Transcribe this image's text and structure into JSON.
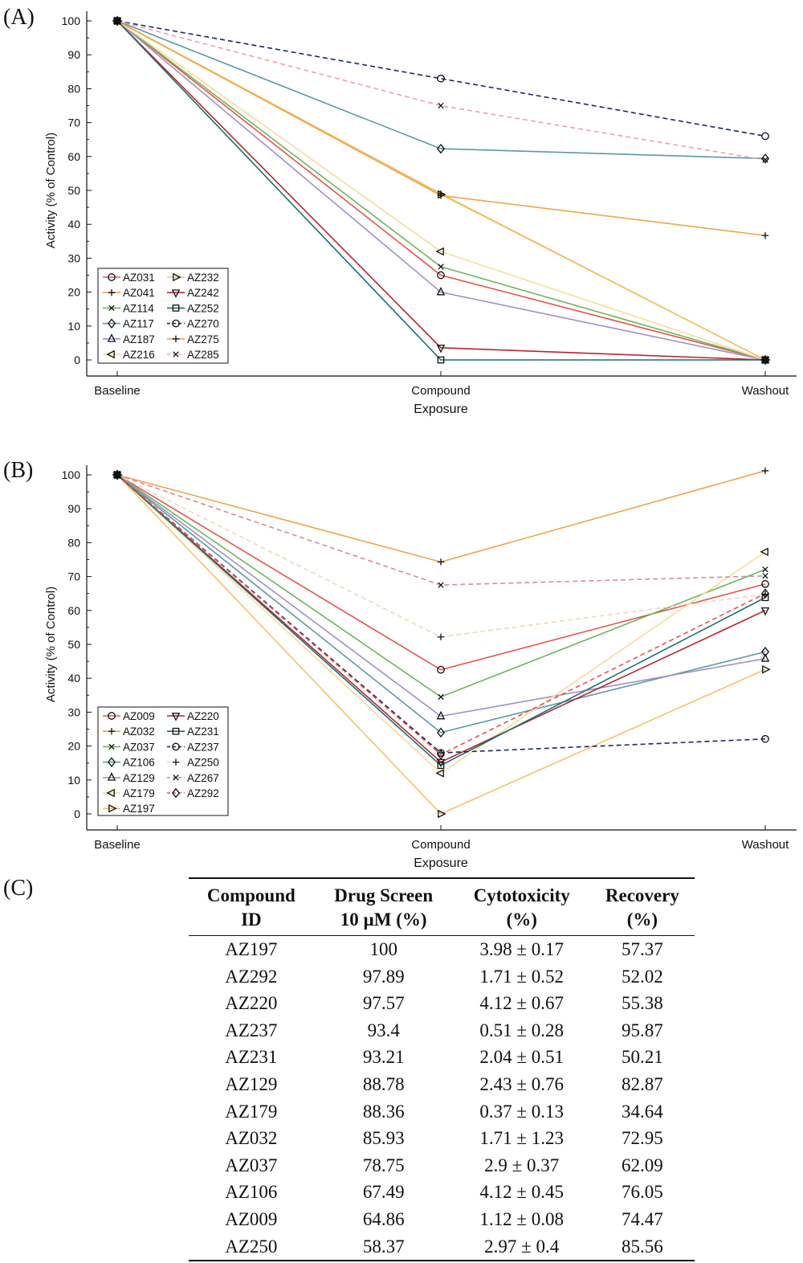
{
  "colors": {
    "AZ031": "#e8534d",
    "AZ041": "#f0a54a",
    "AZ114": "#6fb55c",
    "AZ117": "#5a9aa6",
    "AZ187": "#a190c7",
    "AZ216": "#f5dc98",
    "AZ232": "#f5c36a",
    "AZ242": "#b8262e",
    "AZ252": "#1d6f73",
    "AZ270": "#1a2a5c",
    "AZ275": "#f0a54a",
    "AZ285": "#e8a3b0",
    "AZ009": "#e8534d",
    "AZ032": "#f0a54a",
    "AZ037": "#6fb55c",
    "AZ106": "#5a9aa6",
    "AZ129": "#a190c7",
    "AZ179": "#f5dc98",
    "AZ197": "#f5c36a",
    "AZ220": "#b8262e",
    "AZ231": "#1d6f73",
    "AZ237": "#1a2a5c",
    "AZ250": "#f0d8c0",
    "AZ267": "#d98aa0",
    "AZ292": "#e8534d"
  },
  "chart_data": [
    {
      "panel_label": "(A)",
      "type": "line",
      "x": [
        "Baseline",
        "Compound",
        "Washout"
      ],
      "xlabel": "Exposure",
      "ylabel": "Activity (% of Control)",
      "ylim": [
        0,
        100
      ],
      "yticks": [
        "0",
        "10",
        "20",
        "30",
        "40",
        "50",
        "60",
        "70",
        "80",
        "90",
        "100"
      ],
      "legend_position": "lower-left",
      "series": [
        {
          "name": "AZ031",
          "values": [
            100,
            25,
            0
          ],
          "marker": "circle",
          "dash": false
        },
        {
          "name": "AZ041",
          "values": [
            100,
            49,
            0
          ],
          "marker": "plus",
          "dash": false
        },
        {
          "name": "AZ114",
          "values": [
            100,
            27.5,
            0
          ],
          "marker": "x",
          "dash": false
        },
        {
          "name": "AZ117",
          "values": [
            100,
            62.3,
            59.4
          ],
          "marker": "diamond",
          "dash": false
        },
        {
          "name": "AZ187",
          "values": [
            100,
            20,
            0
          ],
          "marker": "triangle-up",
          "dash": false
        },
        {
          "name": "AZ216",
          "values": [
            100,
            32,
            0
          ],
          "marker": "triangle-left",
          "dash": false
        },
        {
          "name": "AZ232",
          "values": [
            100,
            48.8,
            0
          ],
          "marker": "triangle-right",
          "dash": false
        },
        {
          "name": "AZ242",
          "values": [
            100,
            3.6,
            0
          ],
          "marker": "triangle-down",
          "dash": false
        },
        {
          "name": "AZ252",
          "values": [
            100,
            0,
            0
          ],
          "marker": "square",
          "dash": false
        },
        {
          "name": "AZ270",
          "values": [
            100,
            83,
            66
          ],
          "marker": "circle",
          "dash": true
        },
        {
          "name": "AZ275",
          "values": [
            100,
            48.5,
            36.7
          ],
          "marker": "plus",
          "dash": false
        },
        {
          "name": "AZ285",
          "values": [
            100,
            75,
            59
          ],
          "marker": "x",
          "dash": true
        }
      ]
    },
    {
      "panel_label": "(B)",
      "type": "line",
      "x": [
        "Baseline",
        "Compound",
        "Washout"
      ],
      "xlabel": "Exposure",
      "ylabel": "Activity (% of Control)",
      "ylim": [
        0,
        100
      ],
      "yticks": [
        "0",
        "10",
        "20",
        "30",
        "40",
        "50",
        "60",
        "70",
        "80",
        "90",
        "100"
      ],
      "legend_position": "lower-left",
      "series": [
        {
          "name": "AZ009",
          "values": [
            100,
            42.5,
            67.8
          ],
          "marker": "circle",
          "dash": false
        },
        {
          "name": "AZ032",
          "values": [
            100,
            74.3,
            101.2
          ],
          "marker": "plus",
          "dash": false
        },
        {
          "name": "AZ037",
          "values": [
            100,
            34.5,
            72.1
          ],
          "marker": "x",
          "dash": false
        },
        {
          "name": "AZ106",
          "values": [
            100,
            24,
            47.8
          ],
          "marker": "diamond",
          "dash": false
        },
        {
          "name": "AZ129",
          "values": [
            100,
            28.8,
            45.8
          ],
          "marker": "triangle-up",
          "dash": false
        },
        {
          "name": "AZ179",
          "values": [
            100,
            12,
            77.3
          ],
          "marker": "triangle-left",
          "dash": false
        },
        {
          "name": "AZ197",
          "values": [
            100,
            0,
            42.6
          ],
          "marker": "triangle-right",
          "dash": false
        },
        {
          "name": "AZ220",
          "values": [
            100,
            15.3,
            60
          ],
          "marker": "triangle-down",
          "dash": false
        },
        {
          "name": "AZ231",
          "values": [
            100,
            14.3,
            63.8
          ],
          "marker": "square",
          "dash": false
        },
        {
          "name": "AZ237",
          "values": [
            100,
            18,
            22.1
          ],
          "marker": "circle",
          "dash": true
        },
        {
          "name": "AZ250",
          "values": [
            100,
            52.2,
            64.8
          ],
          "marker": "plus",
          "dash": true
        },
        {
          "name": "AZ267",
          "values": [
            100,
            67.5,
            70.2
          ],
          "marker": "x",
          "dash": true
        },
        {
          "name": "AZ292",
          "values": [
            100,
            17.5,
            65
          ],
          "marker": "diamond",
          "dash": true
        }
      ]
    },
    {
      "panel_label": "(C)",
      "type": "table",
      "columns": [
        {
          "line1": "Compound",
          "line2": "ID"
        },
        {
          "line1": "Drug Screen",
          "line2": "10 µM (%)"
        },
        {
          "line1": "Cytotoxicity",
          "line2": "(%)"
        },
        {
          "line1": "Recovery",
          "line2": "(%)"
        }
      ],
      "rows": [
        [
          "AZ197",
          "100",
          "3.98 ± 0.17",
          "57.37"
        ],
        [
          "AZ292",
          "97.89",
          "1.71 ± 0.52",
          "52.02"
        ],
        [
          "AZ220",
          "97.57",
          "4.12 ± 0.67",
          "55.38"
        ],
        [
          "AZ237",
          "93.4",
          "0.51 ± 0.28",
          "95.87"
        ],
        [
          "AZ231",
          "93.21",
          "2.04 ± 0.51",
          "50.21"
        ],
        [
          "AZ129",
          "88.78",
          "2.43 ± 0.76",
          "82.87"
        ],
        [
          "AZ179",
          "88.36",
          "0.37 ± 0.13",
          "34.64"
        ],
        [
          "AZ032",
          "85.93",
          "1.71 ± 1.23",
          "72.95"
        ],
        [
          "AZ037",
          "78.75",
          "2.9 ± 0.37",
          "62.09"
        ],
        [
          "AZ106",
          "67.49",
          "4.12 ± 0.45",
          "76.05"
        ],
        [
          "AZ009",
          "64.86",
          "1.12 ± 0.08",
          "74.47"
        ],
        [
          "AZ250",
          "58.37",
          "2.97 ± 0.4",
          "85.56"
        ]
      ]
    }
  ]
}
